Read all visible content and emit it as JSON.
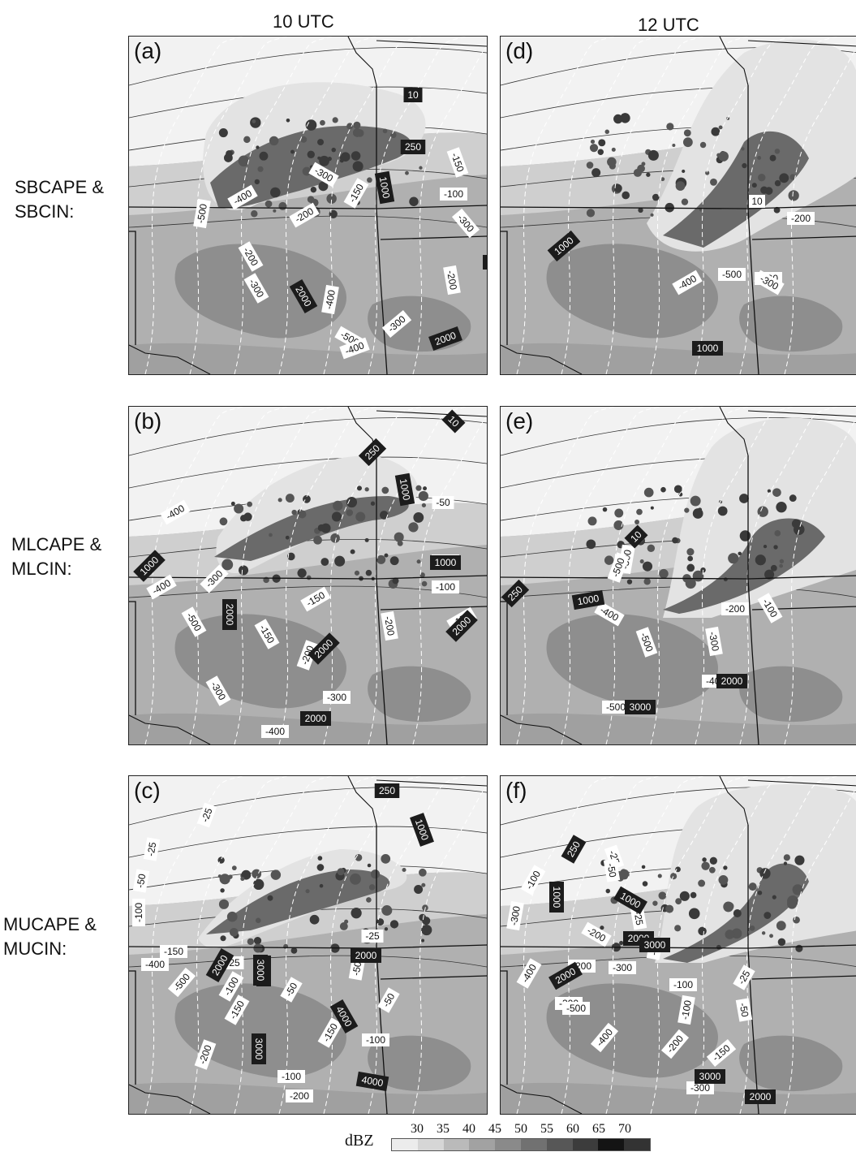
{
  "columns": [
    "10 UTC",
    "12 UTC"
  ],
  "rows": [
    [
      "SBCAPE &",
      "SBCIN:"
    ],
    [
      "MLCAPE &",
      "MLCIN:"
    ],
    [
      "MUCAPE &",
      "MUCIN:"
    ]
  ],
  "panels": [
    {
      "letter": "(a)",
      "cape_labels": [
        "10",
        "250",
        "1000",
        "1000",
        "2000",
        "2000"
      ],
      "cin_labels": [
        "-150",
        "-100",
        "-300",
        "-200",
        "-400",
        "-500",
        "-150",
        "-200",
        "-300",
        "-200",
        "-400",
        "-300",
        "-500",
        "-300",
        "-400"
      ]
    },
    {
      "letter": "(d)",
      "cape_labels": [
        "1000",
        "1000"
      ],
      "cin_labels": [
        "-200",
        "-400",
        "-500",
        "-400",
        "-300",
        "10"
      ]
    },
    {
      "letter": "(b)",
      "cape_labels": [
        "10",
        "250",
        "1000",
        "1000",
        "1000",
        "2000",
        "2000",
        "2000",
        "2000"
      ],
      "cin_labels": [
        "-50",
        "-100",
        "-100",
        "-400",
        "-400",
        "-300",
        "-150",
        "-500",
        "-150",
        "-200",
        "-200",
        "-150",
        "-300",
        "-300",
        "-400"
      ]
    },
    {
      "letter": "(e)",
      "cape_labels": [
        "10",
        "250",
        "1000",
        "2000",
        "3000"
      ],
      "cin_labels": [
        "-300",
        "-500",
        "-400",
        "-200",
        "-100",
        "-500",
        "-300",
        "-400",
        "-500"
      ]
    },
    {
      "letter": "(c)",
      "cape_labels": [
        "250",
        "1000",
        "2000",
        "2000",
        "3000",
        "3000",
        "3000",
        "4000",
        "4000"
      ],
      "cin_labels": [
        "-25",
        "-25",
        "-50",
        "-100",
        "-150",
        "-25",
        "-25",
        "-400",
        "-50",
        "-500",
        "-100",
        "-150",
        "-50",
        "-50",
        "-100",
        "-200",
        "-150",
        "-100",
        "-200"
      ]
    },
    {
      "letter": "(f)",
      "cape_labels": [
        "250",
        "1000",
        "1000",
        "2000",
        "3000",
        "2000",
        "3000",
        "2000"
      ],
      "cin_labels": [
        "-25",
        "-50",
        "-100",
        "-300",
        "-25",
        "-200",
        "-50",
        "-300",
        "-400",
        "-200",
        "-100",
        "-300",
        "-500",
        "-100",
        "-25",
        "-50",
        "-400",
        "-200",
        "-150",
        "-300"
      ]
    }
  ],
  "legend": {
    "title": "dBZ",
    "ticks": [
      "30",
      "35",
      "40",
      "45",
      "50",
      "55",
      "60",
      "65",
      "70"
    ],
    "colors": [
      "#ececec",
      "#d6d6d6",
      "#bababa",
      "#a2a2a2",
      "#8a8a8a",
      "#717171",
      "#575757",
      "#3c3c3c",
      "#141414",
      "#333333"
    ]
  }
}
